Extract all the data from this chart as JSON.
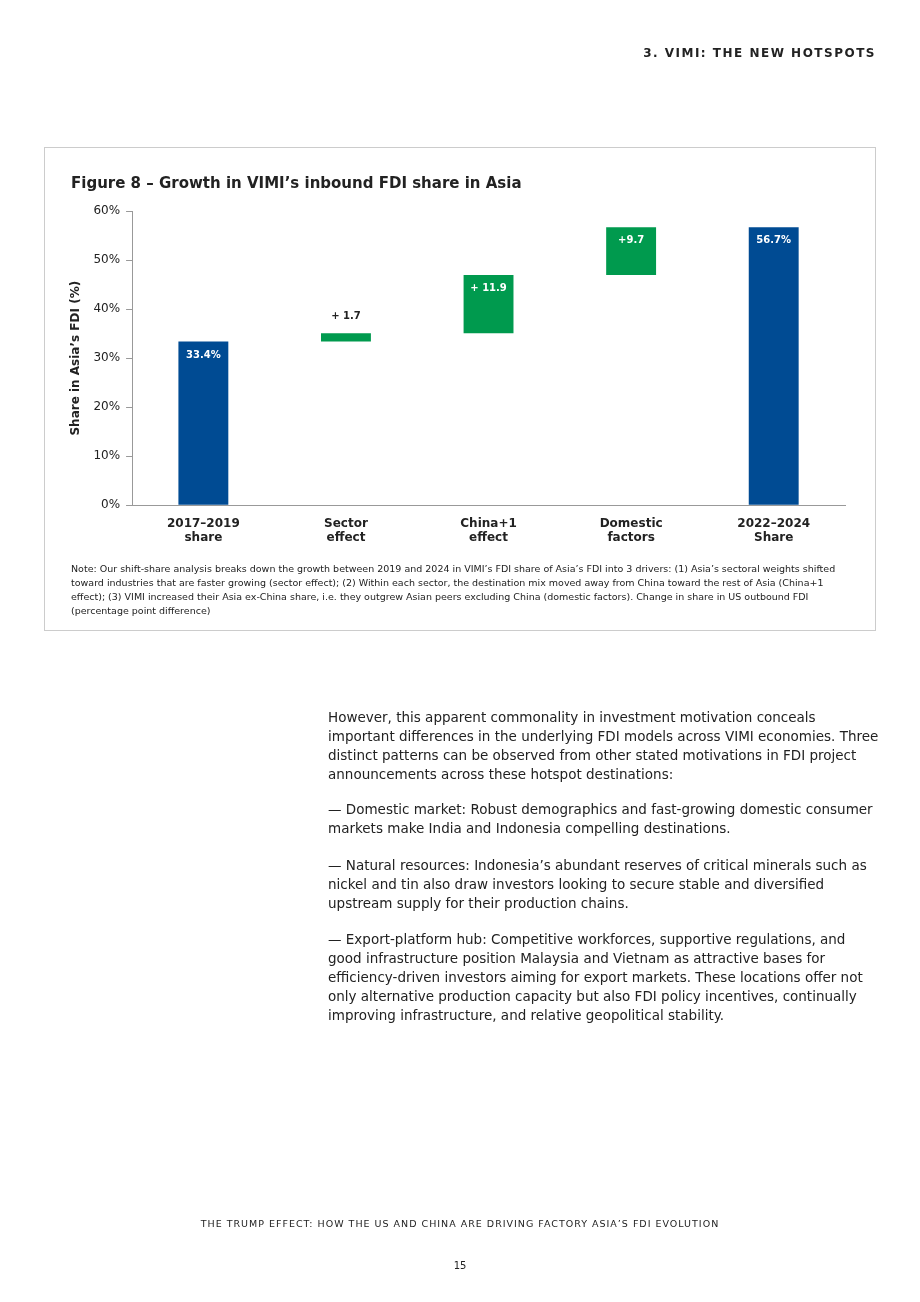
{
  "chart_data": {
    "type": "bar",
    "title": "Figure 8 – Growth in VIMI’s inbound FDI share in Asia",
    "ylabel": "Share in Asia’s FDI (%)",
    "categories": [
      "2017–2019\nshare",
      "Sector\neffect",
      "China+1\neffect",
      "Domestic\nfactors",
      "2022–2024\nShare"
    ],
    "values": [
      33.4,
      1.7,
      11.9,
      9.7,
      56.7
    ],
    "base": [
      0,
      33.4,
      35.1,
      47.0,
      0
    ],
    "colors": [
      "#004b93",
      "#009a4e",
      "#009a4e",
      "#009a4e",
      "#004b93"
    ],
    "value_labels": [
      "33.4%",
      "+ 1.7",
      "+ 11.9",
      "+9.7",
      "56.7%"
    ],
    "ylim": [
      0,
      60
    ],
    "yticks": [
      {
        "value": 0,
        "label": "0%"
      },
      {
        "value": 10,
        "label": "10%"
      },
      {
        "value": 20,
        "label": "20%"
      },
      {
        "value": 30,
        "label": "30%"
      },
      {
        "value": 40,
        "label": "40%"
      },
      {
        "value": 50,
        "label": "50%"
      },
      {
        "value": 60,
        "label": "60%"
      }
    ],
    "grid": false,
    "annotations": [
      "3. VIMI: THE NEW HOTSPOTS",
      "Note: Our shift-share analysis breaks down the growth between 2019 and 2024 in VIMI’s FDI share of Asia’s FDI into 3 drivers: (1) Asia’s sectoral weights shifted toward industries that are faster growing (sector effect); (2) Within each sector, the destination mix moved away from China toward the rest of Asia (China+1 effect);  (3) VIMI increased their Asia ex-China share, i.e. they outgrew Asian peers excluding China (domestic factors). Change in share in US outbound FDI (percentage point difference)",
      "However, this apparent commonality in investment motivation conceals important differences in the underlying FDI models across VIMI economies. Three distinct patterns can be observed from other stated motivations in FDI project announcements across these hotspot destinations:",
      "— Domestic market: Robust demographics and fast-growing domestic consumer markets make India and Indonesia compelling destinations.",
      "— Natural resources: Indonesia’s abundant reserves of critical minerals such as nickel and tin also draw investors looking to secure stable and diversified upstream supply for their production chains.",
      "— Export-platform hub: Competitive workforces, supportive regulations, and good infrastructure position Malaysia and Vietnam as attractive bases for efficiency-driven investors aiming for export markets. These locations offer not only alternative production capacity but also FDI policy incentives, continually improving infrastructure, and relative geopolitical stability.",
      "THE TRUMP EFFECT: HOW THE US AND CHINA ARE DRIVING FACTORY ASIA’S FDI EVOLUTION",
      "15"
    ]
  }
}
